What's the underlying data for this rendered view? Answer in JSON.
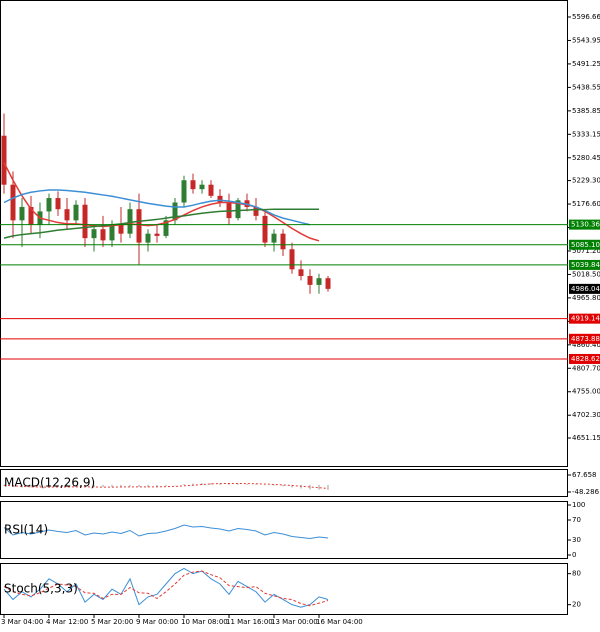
{
  "chart_data": [
    {
      "type": "candlestick",
      "categories": [
        "3 Mar 04:00",
        null,
        null,
        null,
        null,
        "4 Mar 12:00",
        null,
        null,
        null,
        null,
        "5 Mar 20:00",
        null,
        null,
        null,
        null,
        "9 Mar 00:00",
        null,
        null,
        null,
        null,
        "10 Mar 08:00",
        null,
        null,
        null,
        null,
        "11 Mar 16:00",
        null,
        null,
        null,
        null,
        "13 Mar 00:00",
        null,
        null,
        null,
        null,
        "16 Mar 04:00",
        null
      ],
      "open": [
        5330,
        5220,
        5140,
        5170,
        5130,
        5160,
        5190,
        5165,
        5140,
        5175,
        5100,
        5120,
        5095,
        5130,
        5110,
        5165,
        5090,
        5110,
        5105,
        5140,
        5180,
        5230,
        5210,
        5220,
        5195,
        5180,
        5145,
        5185,
        5170,
        5150,
        5090,
        5110,
        5075,
        5030,
        5015,
        4995,
        5010
      ],
      "high": [
        5380,
        5250,
        5190,
        5195,
        5180,
        5200,
        5205,
        5190,
        5185,
        5190,
        5130,
        5150,
        5140,
        5170,
        5180,
        5200,
        5120,
        5130,
        5150,
        5190,
        5240,
        5245,
        5230,
        5230,
        5210,
        5200,
        5190,
        5200,
        5190,
        5160,
        5120,
        5120,
        5090,
        5050,
        5030,
        5020,
        5015
      ],
      "low": [
        5200,
        5100,
        5080,
        5110,
        5100,
        5130,
        5150,
        5120,
        5130,
        5080,
        5070,
        5080,
        5080,
        5090,
        5100,
        5040,
        5070,
        5090,
        5100,
        5130,
        5170,
        5200,
        5200,
        5190,
        5170,
        5130,
        5140,
        5160,
        5140,
        5080,
        5070,
        5060,
        5020,
        5005,
        4975,
        4975,
        4980
      ],
      "close": [
        5220,
        5140,
        5170,
        5130,
        5160,
        5190,
        5165,
        5140,
        5175,
        5100,
        5120,
        5095,
        5130,
        5110,
        5165,
        5090,
        5110,
        5105,
        5140,
        5180,
        5230,
        5210,
        5220,
        5195,
        5180,
        5145,
        5185,
        5170,
        5150,
        5090,
        5110,
        5075,
        5030,
        5015,
        4995,
        5010,
        4986.04
      ],
      "up_color": "#2e7d32",
      "down_color": "#c62828",
      "ylim": [
        4586.0,
        5634.8
      ],
      "yticks": [
        5596.66,
        5543.95,
        5491.25,
        5438.55,
        5385.85,
        5333.15,
        5280.45,
        {
          "value": 5229.3,
          "label": "5229.30"
        },
        {
          "value": 5176.6,
          "label": "5176.60"
        },
        {
          "value": 5123.9,
          "label": "5123.90"
        },
        {
          "value": 5071.2,
          "label": "5071.20"
        },
        {
          "value": 5018.5,
          "label": "5018.50"
        },
        {
          "value": 4965.8,
          "label": "4965.80"
        },
        {
          "value": 4913.1,
          "label": "4913.10"
        },
        {
          "value": 4860.4,
          "label": "4860.40"
        },
        {
          "value": 4807.7,
          "label": "4807.70"
        },
        {
          "value": 4755,
          "label": "4755.00"
        },
        {
          "value": 4702.3,
          "label": "4702.30"
        },
        4651.15
      ],
      "moving_averages": [
        {
          "color": "#e53935",
          "values": [
            5270,
            5230,
            5195,
            5165,
            5145,
            5140,
            5135,
            5132,
            5132,
            5130,
            5128,
            5126,
            5128,
            5130,
            5132,
            5130,
            5128,
            5130,
            5135,
            5142,
            5152,
            5162,
            5170,
            5176,
            5180,
            5180,
            5178,
            5175,
            5170,
            5160,
            5148,
            5135,
            5122,
            5110,
            5100,
            5094,
            null
          ]
        },
        {
          "color": "#3b8fd6",
          "values": [
            5180,
            5190,
            5198,
            5203,
            5206,
            5208,
            5208,
            5207,
            5205,
            5203,
            5200,
            5197,
            5194,
            5190,
            5186,
            5182,
            5178,
            5175,
            5172,
            5170,
            5170,
            5174,
            5179,
            5183,
            5185,
            5183,
            5180,
            5176,
            5170,
            5162,
            5152,
            5145,
            5140,
            5135,
            5130,
            null,
            null
          ]
        },
        {
          "color": "#2e7d32",
          "values": [
            5100,
            5105,
            5108,
            5110,
            5112,
            5115,
            5118,
            5120,
            5122,
            5124,
            5126,
            5128,
            5130,
            5132,
            5135,
            5138,
            5140,
            5142,
            5145,
            5148,
            5150,
            5153,
            5156,
            5158,
            5160,
            5161,
            5162,
            5163,
            5164,
            5164,
            5165,
            5165,
            5165,
            5165,
            5165,
            5165,
            null
          ]
        }
      ],
      "levels": {
        "values": [
          5130.36,
          5085.1,
          5039.84,
          4919.14,
          4873.88,
          4828.62
        ],
        "value_labels": [
          "5130.36",
          "5085.10",
          "5039.84",
          "4919.14",
          "4873.88",
          "4828.62"
        ],
        "colors": [
          "#008000",
          "#008000",
          "#008000",
          "#e00000",
          "#e00000",
          "#e00000"
        ]
      },
      "last_price": 4986.04
    },
    {
      "type": "macd",
      "title": "MACD(12,26,9)",
      "ylim": [
        -82.4,
        108.6
      ],
      "yticks": [
        67.658,
        -48.286
      ],
      "histogram": [
        -5,
        -15,
        -18,
        -17,
        -15,
        -12,
        -12,
        -13,
        -11,
        -14,
        -16,
        -15,
        -14,
        -13,
        -10,
        -13,
        -14,
        -12,
        -8,
        -2,
        6,
        10,
        12,
        12,
        11,
        8,
        8,
        7,
        5,
        -2,
        -5,
        -10,
        -18,
        -24,
        -30,
        -32,
        -33
      ],
      "signal": [
        -2,
        -6,
        -10,
        -13,
        -14,
        -15,
        -14,
        -14,
        -13,
        -13,
        -14,
        -15,
        -15,
        -14,
        -13,
        -13,
        -13,
        -13,
        -12,
        -10,
        -6,
        -2,
        3,
        7,
        9,
        10,
        10,
        9,
        8,
        6,
        3,
        0,
        -4,
        -9,
        -14,
        -19,
        -24
      ],
      "histogram_color": "#9e9e9e",
      "signal_color": "#e53935"
    },
    {
      "type": "line",
      "title": "RSI(14)",
      "ylim": [
        -8,
        108
      ],
      "yticks": [
        100,
        70,
        30,
        0
      ],
      "series": [
        {
          "color": "#3b8fd6",
          "values": [
            55,
            40,
            45,
            42,
            46,
            50,
            47,
            45,
            49,
            40,
            44,
            42,
            46,
            43,
            49,
            38,
            43,
            44,
            48,
            53,
            60,
            56,
            57,
            54,
            52,
            48,
            53,
            51,
            48,
            40,
            45,
            42,
            37,
            35,
            33,
            36,
            34
          ]
        }
      ]
    },
    {
      "type": "line",
      "title": "Stoch(5,3,3)",
      "ylim": [
        0,
        100.6
      ],
      "yticks": [
        80,
        20
      ],
      "series": [
        {
          "color": "#3b8fd6",
          "values": [
            50,
            30,
            45,
            35,
            50,
            70,
            60,
            45,
            60,
            25,
            40,
            30,
            50,
            40,
            70,
            20,
            35,
            40,
            60,
            80,
            90,
            80,
            85,
            70,
            60,
            40,
            65,
            55,
            45,
            25,
            40,
            30,
            20,
            15,
            20,
            35,
            30
          ]
        },
        {
          "color": "#e53935",
          "dashed": true,
          "values": [
            55,
            45,
            40,
            37,
            43,
            52,
            60,
            58,
            55,
            43,
            42,
            32,
            40,
            40,
            53,
            43,
            42,
            32,
            45,
            60,
            77,
            83,
            85,
            78,
            72,
            57,
            55,
            53,
            55,
            42,
            37,
            32,
            30,
            22,
            18,
            23,
            28
          ]
        }
      ]
    }
  ]
}
